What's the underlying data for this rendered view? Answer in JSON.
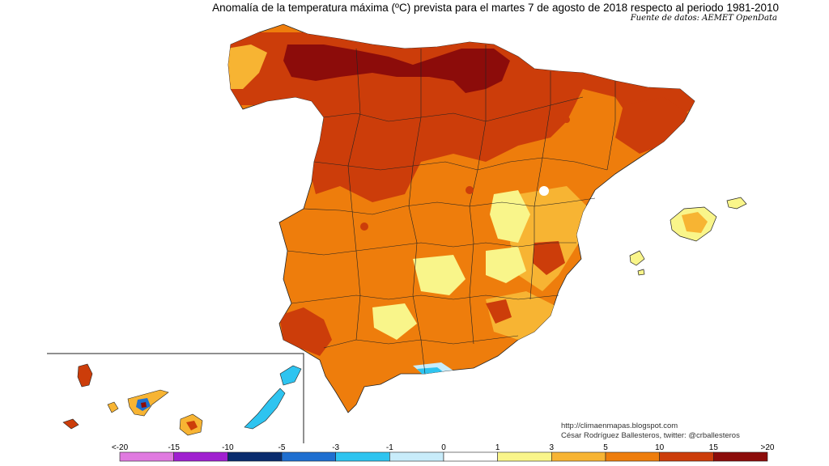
{
  "title": "Anomalía de la temperatura máxima (ºC) prevista para el martes 7 de agosto de 2018 respecto al periodo 1981-2010",
  "source": "Fuente de datos: AEMET OpenData",
  "credit": {
    "url": "http://climaenmapas.blogspot.com",
    "author": "César Rodríguez Ballesteros, twitter: @crballesteros"
  },
  "legend": {
    "labels": [
      "<-20",
      "-15",
      "-10",
      "-5",
      "-3",
      "-1",
      "0",
      "1",
      "3",
      "5",
      "10",
      "15",
      ">20"
    ],
    "colors": [
      "#e07ae0",
      "#a020d0",
      "#0a2c6e",
      "#1f6fd0",
      "#2ec4f0",
      "#c8ecfa",
      "#ffffff",
      "#f9f58a",
      "#f7b433",
      "#ee7d0c",
      "#cc3d0a",
      "#8c0c0a",
      "#6b3a0c"
    ]
  },
  "colors": {
    "very_hot": "#8c0c0a",
    "hot": "#cc3d0a",
    "warm": "#ee7d0c",
    "mild": "#f7b433",
    "slight": "#f9f58a",
    "neutral": "#ffffff",
    "cool": "#c8ecfa",
    "cold": "#2ec4f0"
  }
}
